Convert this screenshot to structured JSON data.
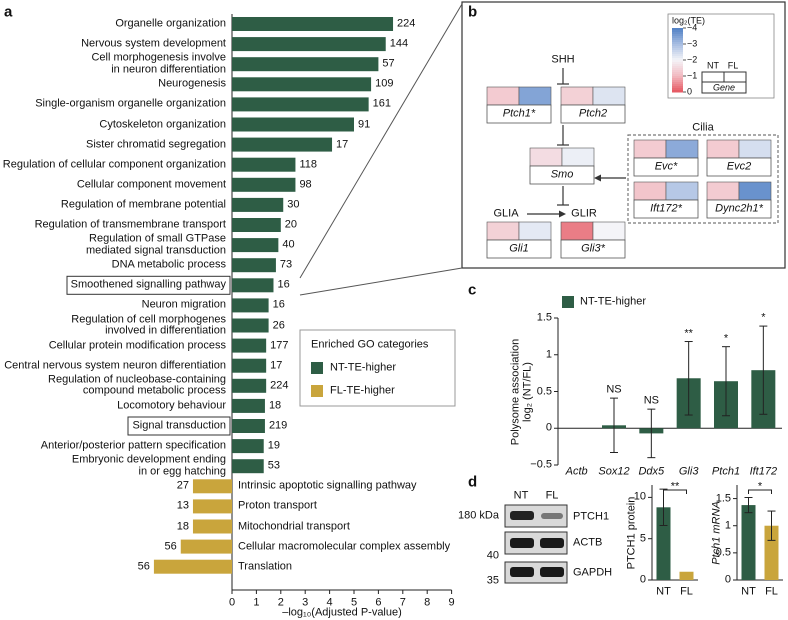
{
  "panel_labels": [
    "a",
    "b",
    "c",
    "d"
  ],
  "chart_data": [
    {
      "type": "hbar",
      "xlabel": "–log₁₀(Adjusted P-value)",
      "xlim": [
        0,
        9
      ],
      "xticks": [
        0,
        1,
        2,
        3,
        4,
        5,
        6,
        7,
        8,
        9
      ],
      "legend_title": "Enriched GO categories",
      "boxed": [
        13,
        20
      ],
      "series": [
        {
          "name": "NT-TE-higher",
          "color": "#2e5d45",
          "categories": [
            "Organelle organization",
            "Nervous system development",
            "Cell morphogenesis involve\nin neuron differentiation",
            "Neurogenesis",
            "Single-organism organelle organization",
            "Cytoskeleton organization",
            "Sister chromatid segregation",
            "Regulation of cellular component organization",
            "Cellular component movement",
            "Regulation of membrane potential",
            "Regulation of transmembrane transport",
            "Regulation of small GTPase\nmediated signal transduction",
            "DNA metabolic process",
            "Smoothened signalling pathway",
            "Neuron migration",
            "Regulation of cell morphogenes\ninvolved in differentiation",
            "Cellular protein modification process",
            "Central nervous system neuron differentiation",
            "Regulation of nucleobase-containing\ncompound metabolic process",
            "Locomotory behaviour",
            "Signal transduction",
            "Anterior/posterior pattern specification",
            "Embryonic development ending\nin or egg hatching"
          ],
          "values": [
            6.6,
            6.3,
            6.0,
            5.7,
            5.6,
            5.0,
            4.1,
            2.6,
            2.6,
            2.1,
            2.0,
            1.9,
            1.8,
            1.7,
            1.5,
            1.5,
            1.4,
            1.4,
            1.4,
            1.35,
            1.35,
            1.3,
            1.3
          ],
          "counts": [
            224,
            144,
            57,
            109,
            161,
            91,
            17,
            118,
            98,
            30,
            20,
            40,
            73,
            16,
            16,
            26,
            177,
            17,
            224,
            18,
            219,
            19,
            53
          ]
        },
        {
          "name": "FL-TE-higher",
          "color": "#c9a53c",
          "direction": "left",
          "categories": [
            "Intrinsic apoptotic signalling pathway",
            "Proton transport",
            "Mitochondrial transport",
            "Cellular macromolecular complex assembly",
            "Translation"
          ],
          "values": [
            1.6,
            1.6,
            1.6,
            2.1,
            3.2
          ],
          "counts": [
            27,
            13,
            18,
            56,
            56
          ]
        }
      ]
    },
    {
      "type": "bar",
      "ylabel": "Polysome association\nlog₂ (NT/FL)",
      "categories": [
        "Actb",
        "Sox12",
        "Ddx5",
        "Gli3",
        "Ptch1",
        "Ift172"
      ],
      "ylim": [
        -0.5,
        1.5
      ],
      "yticks": [
        {
          "value": -0.5,
          "label": "−0.5"
        },
        0,
        0.5,
        1,
        1.5
      ],
      "series": [
        {
          "name": "NT-TE-higher",
          "color": "#2e5d45",
          "values": [
            0,
            0.04,
            -0.07,
            0.68,
            0.64,
            0.79
          ],
          "errors": [
            null,
            0.37,
            0.33,
            0.5,
            0.47,
            0.6
          ],
          "annotations": [
            null,
            "NS",
            "NS",
            "**",
            "*",
            "*"
          ]
        }
      ]
    },
    {
      "type": "bar",
      "ylabel": "PTCH1 protein",
      "categories": [
        "NT",
        "FL"
      ],
      "values": [
        8.8,
        1
      ],
      "errors": [
        2.2,
        null
      ],
      "colors": [
        "#2e5d45",
        "#c9a53c"
      ],
      "significance": "**",
      "ylim": [
        0,
        11.5
      ],
      "yticks": [
        0,
        5,
        10
      ]
    },
    {
      "type": "bar",
      "ylabel": "Ptch1 mRNA",
      "categories": [
        "NT",
        "FL"
      ],
      "values": [
        1.38,
        1.0
      ],
      "errors": [
        0.14,
        0.27
      ],
      "colors": [
        "#2e5d45",
        "#c9a53c"
      ],
      "significance": "*",
      "ylim": [
        0,
        1.75
      ],
      "yticks": [
        0,
        0.5,
        1,
        1.5
      ]
    }
  ],
  "diagram": {
    "legend_title": "log₂(TE)",
    "colorscale": {
      "ticks": [
        {
          "value": -4,
          "label": "−4"
        },
        {
          "value": -3,
          "label": "−3"
        },
        {
          "value": -2,
          "label": "−2"
        },
        {
          "value": -1,
          "label": "−1"
        },
        0
      ],
      "colors": [
        "#4f7fc4",
        "#a6bde2",
        "#f4f4f8",
        "#f2b9c0",
        "#e5555f"
      ]
    },
    "legend_columns": [
      "NT",
      "FL"
    ],
    "legend_gene": "Gene",
    "labels": {
      "shh": "SHH",
      "glia": "GLIA",
      "glir": "GLIR",
      "cilia": "Cilia"
    },
    "genes": [
      {
        "name": "Ptch1*",
        "values": [
          -1.3,
          -3.4
        ]
      },
      {
        "name": "Ptch2",
        "values": [
          -1.4,
          -2.3
        ]
      },
      {
        "name": "Smo",
        "values": [
          -1.6,
          -2.1
        ]
      },
      {
        "name": "Gli1",
        "values": [
          -1.4,
          -2.2
        ]
      },
      {
        "name": "Gli3*",
        "values": [
          -0.4,
          -2.0
        ]
      },
      {
        "name": "Evc*",
        "values": [
          -1.3,
          -3.3
        ]
      },
      {
        "name": "Evc2",
        "values": [
          -1.3,
          -2.4
        ]
      },
      {
        "name": "Ift172*",
        "values": [
          -1.2,
          -2.8
        ]
      },
      {
        "name": "Dync2h1*",
        "values": [
          -1.3,
          -3.7
        ]
      }
    ]
  },
  "blot": {
    "columns": [
      "NT",
      "FL"
    ],
    "markers": [
      "180 kDa",
      "40",
      "35"
    ],
    "bands": [
      "PTCH1",
      "ACTB",
      "GAPDH"
    ]
  }
}
